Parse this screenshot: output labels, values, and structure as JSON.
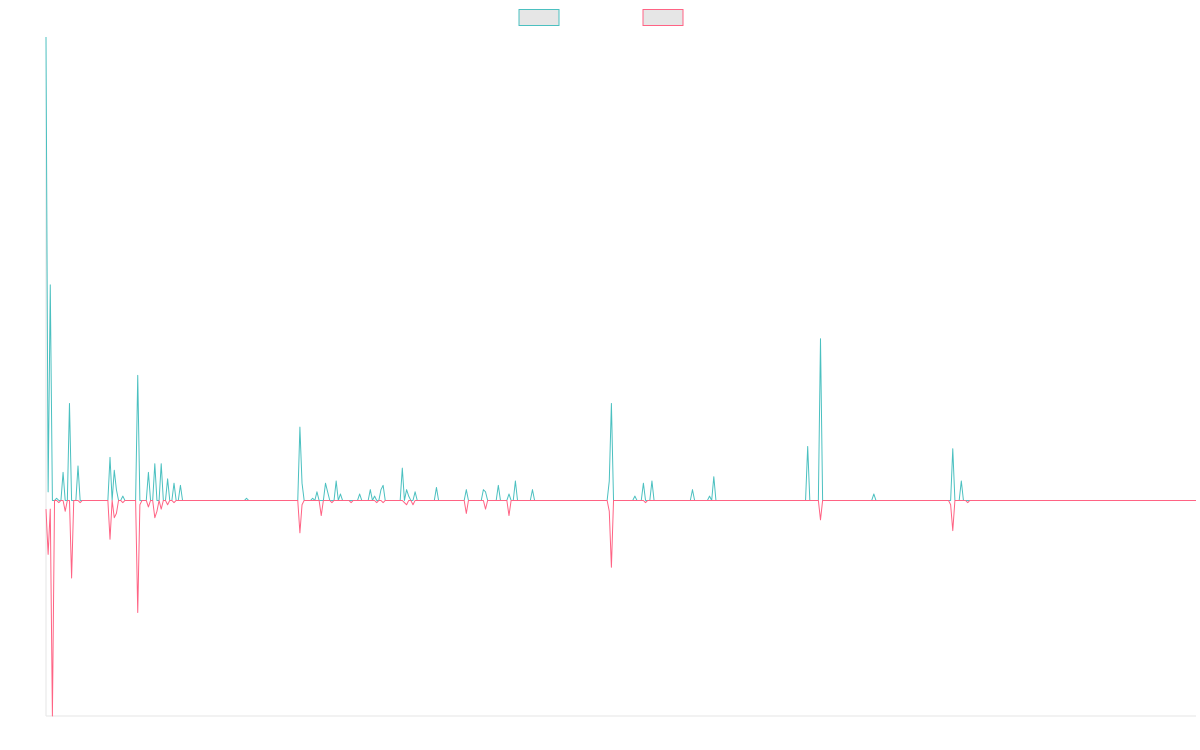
{
  "chart_data": {
    "type": "line",
    "title": "",
    "xlabel": "",
    "ylabel": "",
    "ylim": [
      -100,
      215
    ],
    "grid": false,
    "legend": "top-center",
    "series": [
      {
        "name": "",
        "color": "#4bc0c0",
        "fill": "#e6e6e6",
        "values": [
          215,
          4,
          100,
          0,
          0,
          1,
          0,
          0,
          13,
          0,
          0,
          45,
          0,
          0,
          0,
          16,
          0,
          0,
          0,
          0,
          0,
          0,
          0,
          0,
          0,
          0,
          0,
          0,
          0,
          0,
          20,
          0,
          14,
          5,
          0,
          0,
          2,
          0,
          0,
          0,
          0,
          0,
          0,
          58,
          0,
          0,
          0,
          0,
          13,
          0,
          0,
          17,
          0,
          0,
          17,
          0,
          0,
          10,
          0,
          0,
          8,
          0,
          0,
          7,
          0,
          0,
          0,
          0,
          0,
          0,
          0,
          0,
          0,
          0,
          0,
          0,
          0,
          0,
          0,
          0,
          0,
          0,
          0,
          0,
          0,
          0,
          0,
          0,
          0,
          0,
          0,
          0,
          0,
          0,
          1,
          0,
          0,
          0,
          0,
          0,
          0,
          0,
          0,
          0,
          0,
          0,
          0,
          0,
          0,
          0,
          0,
          0,
          0,
          0,
          0,
          0,
          0,
          0,
          0,
          34,
          8,
          0,
          0,
          0,
          0,
          1,
          0,
          4,
          0,
          0,
          0,
          8,
          4,
          0,
          0,
          0,
          9,
          0,
          3,
          0,
          0,
          0,
          0,
          0,
          0,
          0,
          0,
          3,
          0,
          0,
          0,
          0,
          5,
          0,
          2,
          0,
          0,
          5,
          7,
          0,
          0,
          0,
          0,
          0,
          0,
          0,
          0,
          15,
          0,
          5,
          2,
          0,
          0,
          4,
          0,
          0,
          0,
          0,
          0,
          0,
          0,
          0,
          0,
          6,
          0,
          0,
          0,
          0,
          0,
          0,
          0,
          0,
          0,
          0,
          0,
          0,
          0,
          5,
          0,
          0,
          0,
          0,
          0,
          0,
          0,
          5,
          4,
          0,
          0,
          0,
          0,
          0,
          7,
          0,
          0,
          0,
          0,
          3,
          0,
          0,
          9,
          0,
          0,
          0,
          0,
          0,
          0,
          0,
          5,
          0,
          0,
          0,
          0,
          0,
          0,
          0,
          0,
          0,
          0,
          0,
          0,
          0,
          0,
          0,
          0,
          0,
          0,
          0,
          0,
          0,
          0,
          0,
          0,
          0,
          0,
          0,
          0,
          0,
          0,
          0,
          0,
          0,
          0,
          0,
          9,
          45,
          0,
          0,
          0,
          0,
          0,
          0,
          0,
          0,
          0,
          0,
          2,
          0,
          0,
          0,
          8,
          0,
          0,
          0,
          9,
          0,
          0,
          0,
          0,
          0,
          0,
          0,
          0,
          0,
          0,
          0,
          0,
          0,
          0,
          0,
          0,
          0,
          0,
          5,
          0,
          0,
          0,
          0,
          0,
          0,
          0,
          2,
          0,
          11,
          0,
          0,
          0,
          0,
          0,
          0,
          0,
          0,
          0,
          0,
          0,
          0,
          0,
          0,
          0,
          0,
          0,
          0,
          0,
          0,
          0,
          0,
          0,
          0,
          0,
          0,
          0,
          0,
          0,
          0,
          0,
          0,
          0,
          0,
          0,
          0,
          0,
          0,
          0,
          0,
          0,
          0,
          0,
          25,
          0,
          0,
          0,
          0,
          0,
          75,
          0,
          0,
          0,
          0,
          0,
          0,
          0,
          0,
          0,
          0,
          0,
          0,
          0,
          0,
          0,
          0,
          0,
          0,
          0,
          0,
          0,
          0,
          0,
          0,
          3,
          0,
          0,
          0,
          0,
          0,
          0,
          0,
          0,
          0,
          0,
          0,
          0,
          0,
          0,
          0,
          0,
          0,
          0,
          0,
          0,
          0,
          0,
          0,
          0,
          0,
          0,
          0,
          0,
          0,
          0,
          0,
          0,
          0,
          0,
          0,
          0,
          24,
          0,
          0,
          0,
          9,
          0,
          0,
          0,
          0,
          0,
          0,
          0,
          0,
          0,
          0,
          0,
          0,
          0,
          0,
          0,
          0,
          0,
          0,
          0,
          0,
          0,
          0,
          0,
          0,
          0,
          0,
          0,
          0,
          0,
          0,
          0,
          0,
          0,
          0,
          0,
          0,
          0,
          0,
          0,
          0,
          0,
          0,
          0,
          0,
          0,
          0,
          0,
          0,
          0,
          0,
          0,
          0,
          0,
          0,
          0,
          0,
          0,
          0,
          0,
          0,
          0,
          0,
          0,
          0,
          0,
          0,
          0,
          0,
          0,
          0,
          0,
          0,
          0,
          0,
          0,
          0,
          0,
          0,
          0,
          0,
          0,
          0,
          0,
          0,
          0,
          0,
          0,
          0,
          0,
          0,
          0,
          0,
          0,
          0,
          0,
          0,
          0,
          0,
          0,
          0,
          0,
          0,
          0,
          0,
          0,
          0,
          0,
          0,
          0,
          0
        ]
      },
      {
        "name": "",
        "color": "#ff6384",
        "fill": "#e6e6e6",
        "values": [
          -4,
          -25,
          -4,
          -100,
          0,
          0,
          -1,
          0,
          0,
          -5,
          0,
          0,
          -36,
          0,
          0,
          0,
          -1,
          0,
          0,
          0,
          0,
          0,
          0,
          0,
          0,
          0,
          0,
          0,
          0,
          0,
          -18,
          0,
          -8,
          -6,
          0,
          0,
          -1,
          0,
          0,
          0,
          0,
          0,
          0,
          -52,
          -2,
          0,
          0,
          0,
          -3,
          0,
          0,
          -8,
          -5,
          0,
          -4,
          0,
          0,
          -2,
          0,
          0,
          -1,
          0,
          0,
          0,
          0,
          0,
          0,
          0,
          0,
          0,
          0,
          0,
          0,
          0,
          0,
          0,
          0,
          0,
          0,
          0,
          0,
          0,
          0,
          0,
          0,
          0,
          0,
          0,
          0,
          0,
          0,
          0,
          0,
          0,
          0,
          0,
          0,
          0,
          0,
          0,
          0,
          0,
          0,
          0,
          0,
          0,
          0,
          0,
          0,
          0,
          0,
          0,
          0,
          0,
          0,
          0,
          0,
          0,
          0,
          -15,
          -2,
          0,
          0,
          0,
          0,
          0,
          0,
          0,
          0,
          -7,
          0,
          0,
          0,
          0,
          -1,
          0,
          0,
          0,
          0,
          0,
          0,
          0,
          0,
          -1,
          0,
          0,
          0,
          0,
          0,
          0,
          0,
          0,
          0,
          0,
          0,
          -1,
          0,
          0,
          -1,
          0,
          0,
          0,
          0,
          0,
          0,
          0,
          0,
          0,
          -1,
          -2,
          0,
          0,
          -2,
          0,
          0,
          0,
          0,
          0,
          0,
          0,
          0,
          0,
          0,
          0,
          0,
          0,
          0,
          0,
          0,
          0,
          0,
          0,
          0,
          0,
          0,
          0,
          0,
          -6,
          0,
          0,
          0,
          0,
          0,
          0,
          0,
          0,
          -4,
          0,
          0,
          0,
          0,
          0,
          0,
          0,
          0,
          0,
          0,
          -7,
          0,
          0,
          0,
          0,
          0,
          0,
          0,
          0,
          0,
          0,
          0,
          0,
          0,
          0,
          0,
          0,
          0,
          0,
          0,
          0,
          0,
          0,
          0,
          0,
          0,
          0,
          0,
          0,
          0,
          0,
          0,
          0,
          0,
          0,
          0,
          0,
          0,
          0,
          0,
          0,
          0,
          0,
          0,
          0,
          0,
          0,
          -5,
          -31,
          0,
          0,
          0,
          0,
          0,
          0,
          0,
          0,
          0,
          0,
          0,
          0,
          0,
          0,
          0,
          -1,
          0,
          0,
          0,
          0,
          0,
          0,
          0,
          0,
          0,
          0,
          0,
          0,
          0,
          0,
          0,
          0,
          0,
          0,
          0,
          0,
          0,
          0,
          0,
          0,
          0,
          0,
          0,
          0,
          0,
          0,
          0,
          0,
          0,
          0,
          0,
          0,
          0,
          0,
          0,
          0,
          0,
          0,
          0,
          0,
          0,
          0,
          0,
          0,
          0,
          0,
          0,
          0,
          0,
          0,
          0,
          0,
          0,
          0,
          0,
          0,
          0,
          0,
          0,
          0,
          0,
          0,
          0,
          0,
          0,
          0,
          0,
          0,
          0,
          0,
          0,
          0,
          0,
          0,
          0,
          0,
          0,
          -9,
          0,
          0,
          0,
          0,
          0,
          0,
          0,
          0,
          0,
          0,
          0,
          0,
          0,
          0,
          0,
          0,
          0,
          0,
          0,
          0,
          0,
          0,
          0,
          0,
          0,
          0,
          0,
          0,
          0,
          0,
          0,
          0,
          0,
          0,
          0,
          0,
          0,
          0,
          0,
          0,
          0,
          0,
          0,
          0,
          0,
          0,
          0,
          0,
          0,
          0,
          0,
          0,
          0,
          0,
          0,
          0,
          0,
          0,
          0,
          0,
          -2,
          -14,
          0,
          0,
          0,
          0,
          0,
          0,
          -1,
          0,
          0,
          0,
          0,
          0,
          0,
          0,
          0,
          0,
          0,
          0,
          0,
          0,
          0,
          0,
          0,
          0,
          0,
          0,
          0,
          0,
          0,
          0,
          0,
          0,
          0,
          0,
          0,
          0,
          0,
          0,
          0,
          0,
          0,
          0,
          0,
          0,
          0,
          0,
          0,
          0,
          0,
          0,
          0,
          0,
          0,
          0,
          0,
          0,
          0,
          0,
          0,
          0,
          0,
          0,
          0,
          0,
          0,
          0,
          0,
          0,
          0,
          0,
          0,
          0,
          0,
          0,
          0,
          0,
          0,
          0,
          0,
          0,
          0,
          0,
          0,
          0,
          0,
          0,
          0,
          0,
          0,
          0,
          0,
          0,
          0,
          0,
          0,
          0,
          0,
          0,
          0,
          0,
          0,
          0,
          0,
          0,
          0,
          0,
          0,
          0,
          0,
          0,
          0,
          0,
          0,
          0
        ]
      }
    ]
  }
}
